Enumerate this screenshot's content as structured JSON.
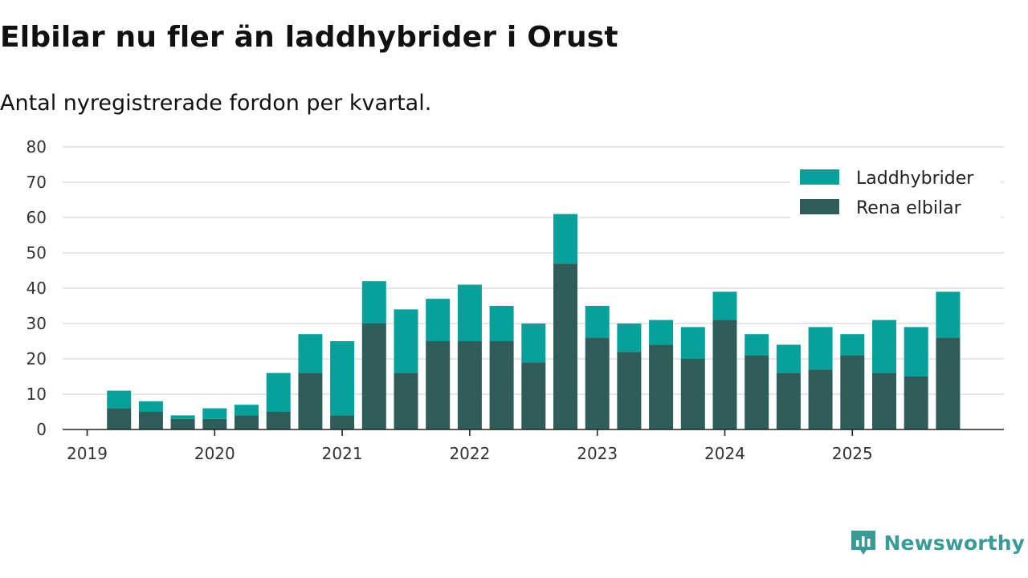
{
  "title": "Elbilar nu fler än laddhybrider i Orust",
  "subtitle": "Antal nyregistrerade fordon per kvartal.",
  "brand": {
    "name": "Newsworthy",
    "icon": "newsworthy-logo-icon",
    "color": "#3a9a96"
  },
  "chart_data": {
    "type": "bar",
    "stacked": true,
    "title": "Elbilar nu fler än laddhybrider i Orust",
    "subtitle": "Antal nyregistrerade fordon per kvartal.",
    "xlabel": "",
    "ylabel": "",
    "ylim": [
      0,
      80
    ],
    "yticks": [
      0,
      10,
      20,
      30,
      40,
      50,
      60,
      70,
      80
    ],
    "year_ticks": [
      "2019",
      "2020",
      "2021",
      "2022",
      "2023",
      "2024",
      "2025"
    ],
    "categories": [
      "2019 Q1",
      "2019 Q2",
      "2019 Q3",
      "2019 Q4",
      "2020 Q1",
      "2020 Q2",
      "2020 Q3",
      "2020 Q4",
      "2021 Q1",
      "2021 Q2",
      "2021 Q3",
      "2021 Q4",
      "2022 Q1",
      "2022 Q2",
      "2022 Q3",
      "2022 Q4",
      "2023 Q1",
      "2023 Q2",
      "2023 Q3",
      "2023 Q4",
      "2024 Q1",
      "2024 Q2",
      "2024 Q3",
      "2024 Q4",
      "2025 Q1",
      "2025 Q2",
      "2025 Q3",
      "2025 Q4"
    ],
    "series": [
      {
        "name": "Rena elbilar",
        "color": "#2f5e5a",
        "values": [
          6,
          5,
          3,
          3,
          4,
          5,
          16,
          4,
          30,
          16,
          25,
          25,
          25,
          19,
          47,
          26,
          22,
          24,
          20,
          31,
          21,
          16,
          17,
          21,
          16,
          15,
          26,
          0
        ]
      },
      {
        "name": "Laddhybrider",
        "color": "#05a19a",
        "values": [
          5,
          3,
          1,
          3,
          3,
          11,
          11,
          21,
          12,
          18,
          12,
          16,
          10,
          11,
          14,
          9,
          8,
          7,
          9,
          8,
          6,
          8,
          12,
          6,
          15,
          14,
          13,
          0
        ]
      }
    ],
    "legend": {
      "placement": "top-right",
      "entries": [
        "Laddhybrider",
        "Rena elbilar"
      ]
    },
    "grid": true
  }
}
